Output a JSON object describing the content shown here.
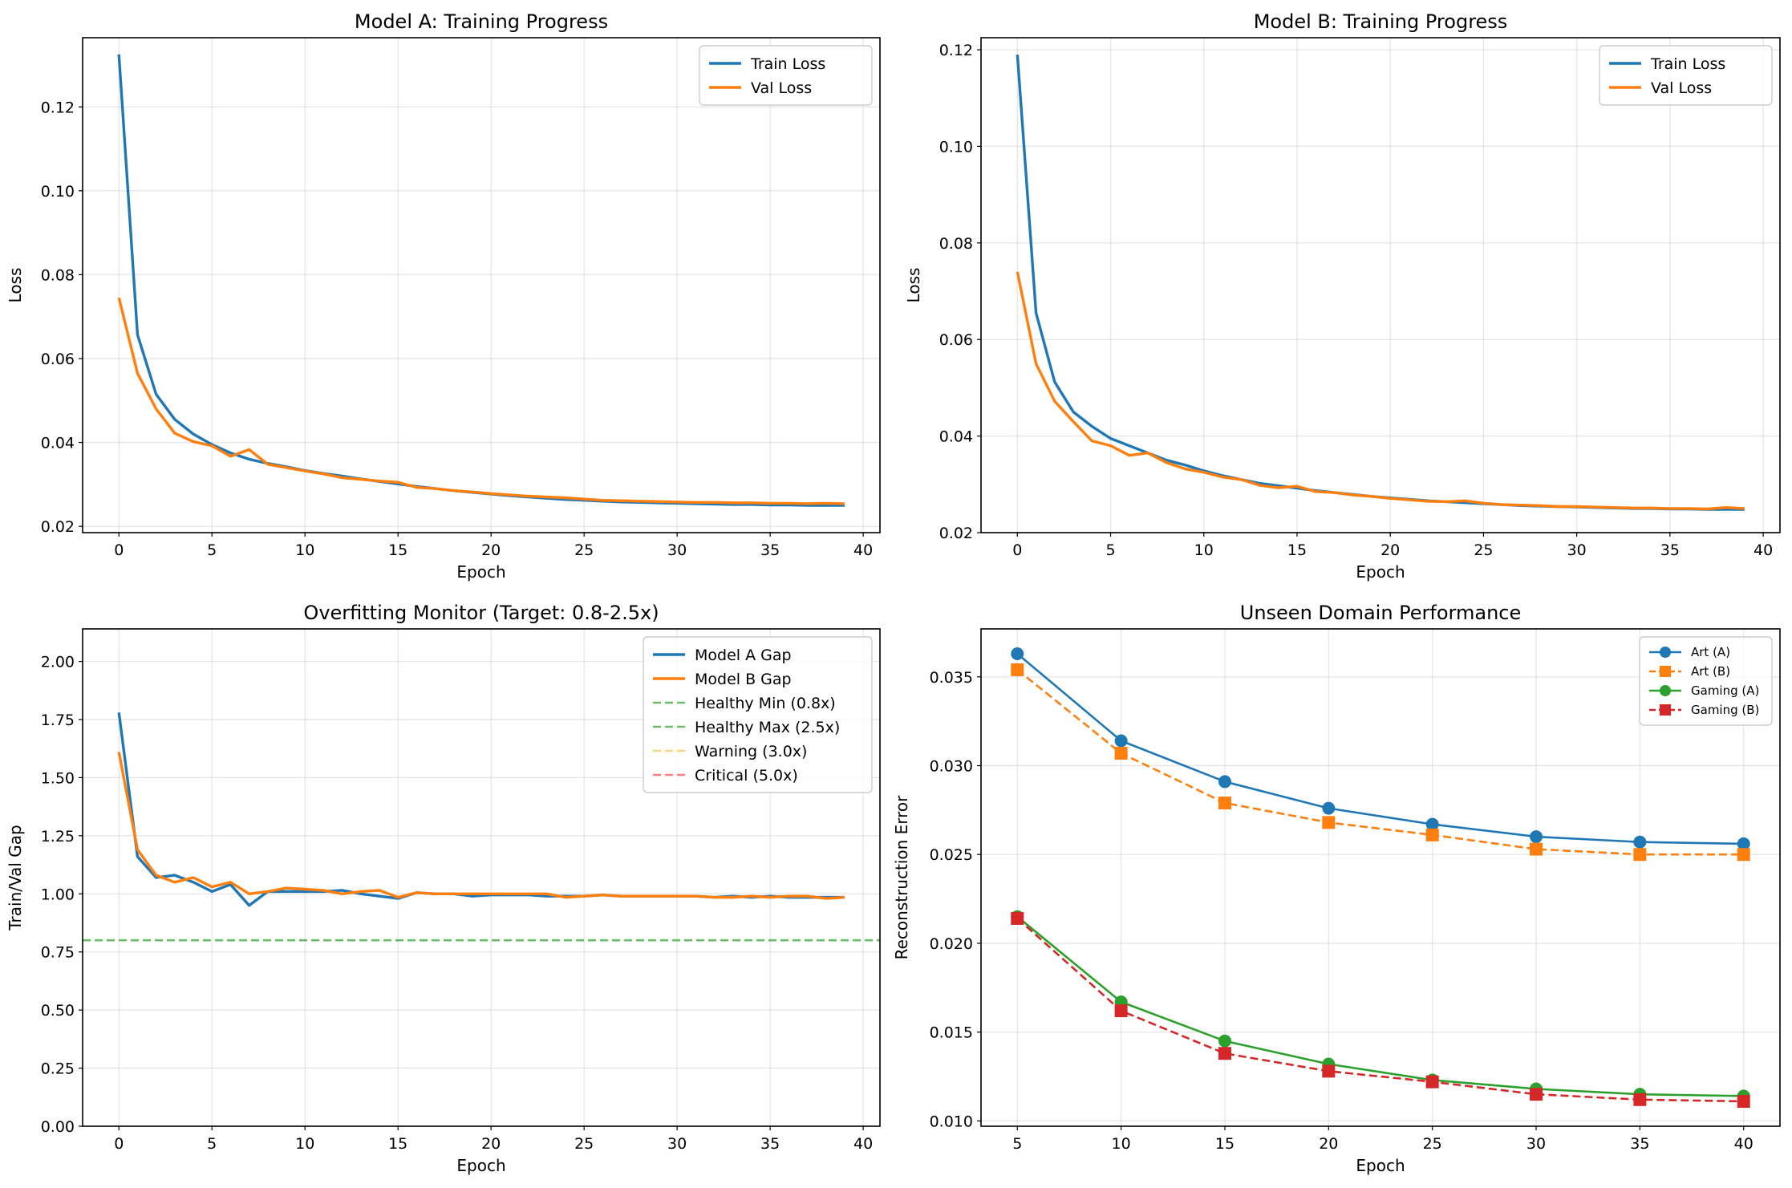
{
  "chart_data": [
    {
      "type": "line",
      "title": "Model A: Training Progress",
      "xlabel": "Epoch",
      "ylabel": "Loss",
      "xlim": [
        -1.95,
        40.9
      ],
      "ylim": [
        0.0185,
        0.1365
      ],
      "xticks": [
        0,
        5,
        10,
        15,
        20,
        25,
        30,
        35,
        40
      ],
      "yticks": [
        0.02,
        0.04,
        0.06,
        0.08,
        0.1,
        0.12
      ],
      "ytick_decimals": 2,
      "grid": true,
      "legend": "top-right",
      "x": [
        0,
        1,
        2,
        3,
        4,
        5,
        6,
        7,
        8,
        9,
        10,
        11,
        12,
        13,
        14,
        15,
        16,
        17,
        18,
        19,
        20,
        21,
        22,
        23,
        24,
        25,
        26,
        27,
        28,
        29,
        30,
        31,
        32,
        33,
        34,
        35,
        36,
        37,
        38,
        39
      ],
      "series": [
        {
          "name": "Train Loss",
          "color": "#1f77b4",
          "style": "solid",
          "values": [
            0.1325,
            0.0657,
            0.0515,
            0.0455,
            0.042,
            0.0395,
            0.0375,
            0.036,
            0.035,
            0.0342,
            0.0333,
            0.0326,
            0.032,
            0.0313,
            0.0307,
            0.0301,
            0.0295,
            0.029,
            0.0285,
            0.0281,
            0.0277,
            0.0273,
            0.027,
            0.0267,
            0.0264,
            0.0262,
            0.026,
            0.0258,
            0.0257,
            0.0256,
            0.0255,
            0.0254,
            0.0253,
            0.0252,
            0.0252,
            0.0251,
            0.0251,
            0.025,
            0.025,
            0.025
          ]
        },
        {
          "name": "Val Loss",
          "color": "#ff7f0e",
          "style": "solid",
          "values": [
            0.0745,
            0.0565,
            0.048,
            0.0422,
            0.0402,
            0.0392,
            0.0367,
            0.0383,
            0.0348,
            0.034,
            0.0332,
            0.0325,
            0.0316,
            0.0312,
            0.0308,
            0.0305,
            0.0293,
            0.029,
            0.0285,
            0.0282,
            0.0278,
            0.0275,
            0.0272,
            0.027,
            0.0268,
            0.0265,
            0.0262,
            0.0261,
            0.026,
            0.0259,
            0.0258,
            0.0257,
            0.0257,
            0.0256,
            0.0256,
            0.0255,
            0.0255,
            0.0254,
            0.0255,
            0.0254
          ]
        }
      ]
    },
    {
      "type": "line",
      "title": "Model B: Training Progress",
      "xlabel": "Epoch",
      "ylabel": "Loss",
      "xlim": [
        -1.95,
        40.9
      ],
      "ylim": [
        0.02,
        0.1225
      ],
      "xticks": [
        0,
        5,
        10,
        15,
        20,
        25,
        30,
        35,
        40
      ],
      "yticks": [
        0.02,
        0.04,
        0.06,
        0.08,
        0.1,
        0.12
      ],
      "ytick_decimals": 2,
      "grid": true,
      "legend": "top-right",
      "x": [
        0,
        1,
        2,
        3,
        4,
        5,
        6,
        7,
        8,
        9,
        10,
        11,
        12,
        13,
        14,
        15,
        16,
        17,
        18,
        19,
        20,
        21,
        22,
        23,
        24,
        25,
        26,
        27,
        28,
        29,
        30,
        31,
        32,
        33,
        34,
        35,
        36,
        37,
        38,
        39
      ],
      "series": [
        {
          "name": "Train Loss",
          "color": "#1f77b4",
          "style": "solid",
          "values": [
            0.119,
            0.0655,
            0.0512,
            0.045,
            0.042,
            0.0395,
            0.038,
            0.0365,
            0.035,
            0.034,
            0.0328,
            0.0318,
            0.031,
            0.0302,
            0.0297,
            0.0292,
            0.0287,
            0.0283,
            0.0279,
            0.0275,
            0.0272,
            0.0269,
            0.0266,
            0.0264,
            0.0262,
            0.026,
            0.0258,
            0.0256,
            0.0255,
            0.0254,
            0.0253,
            0.0252,
            0.0251,
            0.025,
            0.025,
            0.0249,
            0.0249,
            0.0248,
            0.0248,
            0.0248
          ]
        },
        {
          "name": "Val Loss",
          "color": "#ff7f0e",
          "style": "solid",
          "values": [
            0.074,
            0.055,
            0.0472,
            0.043,
            0.039,
            0.038,
            0.036,
            0.0365,
            0.0345,
            0.0332,
            0.0325,
            0.0315,
            0.031,
            0.0298,
            0.0293,
            0.0296,
            0.0285,
            0.0283,
            0.0278,
            0.0275,
            0.0271,
            0.0268,
            0.0265,
            0.0264,
            0.0266,
            0.0261,
            0.0258,
            0.0257,
            0.0256,
            0.0254,
            0.0254,
            0.0253,
            0.0252,
            0.0251,
            0.0251,
            0.025,
            0.025,
            0.0249,
            0.0252,
            0.025
          ]
        }
      ]
    },
    {
      "type": "line",
      "title": "Overfitting Monitor (Target: 0.8-2.5x)",
      "xlabel": "Epoch",
      "ylabel": "Train/Val Gap",
      "xlim": [
        -1.95,
        40.9
      ],
      "ylim": [
        0,
        2.14
      ],
      "xticks": [
        0,
        5,
        10,
        15,
        20,
        25,
        30,
        35,
        40
      ],
      "yticks": [
        0,
        0.25,
        0.5,
        0.75,
        1.0,
        1.25,
        1.5,
        1.75,
        2.0
      ],
      "ytick_decimals": 2,
      "grid": true,
      "legend": "top-right",
      "x": [
        0,
        1,
        2,
        3,
        4,
        5,
        6,
        7,
        8,
        9,
        10,
        11,
        12,
        13,
        14,
        15,
        16,
        17,
        18,
        19,
        20,
        21,
        22,
        23,
        24,
        25,
        26,
        27,
        28,
        29,
        30,
        31,
        32,
        33,
        34,
        35,
        36,
        37,
        38,
        39
      ],
      "series": [
        {
          "name": "Model A Gap",
          "color": "#1f77b4",
          "style": "solid",
          "values": [
            1.78,
            1.16,
            1.07,
            1.08,
            1.05,
            1.01,
            1.04,
            0.95,
            1.01,
            1.01,
            1.01,
            1.01,
            1.015,
            1.0,
            0.99,
            0.98,
            1.005,
            1.0,
            1.0,
            0.99,
            0.995,
            0.995,
            0.995,
            0.99,
            0.99,
            0.99,
            0.995,
            0.99,
            0.99,
            0.99,
            0.99,
            0.99,
            0.985,
            0.99,
            0.985,
            0.99,
            0.985,
            0.985,
            0.985,
            0.985
          ]
        },
        {
          "name": "Model B Gap",
          "color": "#ff7f0e",
          "style": "solid",
          "values": [
            1.61,
            1.19,
            1.08,
            1.05,
            1.07,
            1.03,
            1.05,
            1.0,
            1.01,
            1.025,
            1.02,
            1.015,
            1.0,
            1.01,
            1.015,
            0.985,
            1.005,
            1.0,
            1.0,
            1.0,
            1.0,
            1.0,
            1.0,
            1.0,
            0.985,
            0.99,
            0.995,
            0.99,
            0.99,
            0.99,
            0.99,
            0.99,
            0.985,
            0.985,
            0.99,
            0.985,
            0.99,
            0.99,
            0.98,
            0.985
          ]
        }
      ],
      "hlines": [
        {
          "name": "Healthy Min (0.8x)",
          "y": 0.8,
          "color": "#2ca02c",
          "opacity": 0.7
        },
        {
          "name": "Healthy Max (2.5x)",
          "y": 2.5,
          "color": "#2ca02c",
          "opacity": 0.7
        },
        {
          "name": "Warning (3.0x)",
          "y": 3.0,
          "color": "#ffa500",
          "opacity": 0.5
        },
        {
          "name": "Critical (5.0x)",
          "y": 5.0,
          "color": "#ff0000",
          "opacity": 0.5
        }
      ]
    },
    {
      "type": "line",
      "title": "Unseen Domain Performance",
      "xlabel": "Epoch",
      "ylabel": "Reconstruction Error",
      "xlim": [
        3.25,
        41.75
      ],
      "ylim": [
        0.0097,
        0.0377
      ],
      "xticks": [
        5,
        10,
        15,
        20,
        25,
        30,
        35,
        40
      ],
      "yticks": [
        0.01,
        0.015,
        0.02,
        0.025,
        0.03,
        0.035
      ],
      "ytick_decimals": 3,
      "grid": true,
      "legend": "top-right",
      "x": [
        5,
        10,
        15,
        20,
        25,
        30,
        35,
        40
      ],
      "series": [
        {
          "name": "Art (A)",
          "color": "#1f77b4",
          "style": "solid",
          "marker": "circle",
          "values": [
            0.0363,
            0.0314,
            0.0291,
            0.0276,
            0.0267,
            0.026,
            0.0257,
            0.0256
          ]
        },
        {
          "name": "Art (B)",
          "color": "#ff7f0e",
          "style": "dashed",
          "marker": "square",
          "values": [
            0.0354,
            0.0307,
            0.0279,
            0.0268,
            0.0261,
            0.0253,
            0.025,
            0.025
          ]
        },
        {
          "name": "Gaming (A)",
          "color": "#2ca02c",
          "style": "solid",
          "marker": "circle",
          "values": [
            0.0215,
            0.0167,
            0.0145,
            0.0132,
            0.0123,
            0.0118,
            0.0115,
            0.0114
          ]
        },
        {
          "name": "Gaming (B)",
          "color": "#d62728",
          "style": "dashed",
          "marker": "square",
          "values": [
            0.0214,
            0.0162,
            0.0138,
            0.0128,
            0.0122,
            0.0115,
            0.0112,
            0.0111
          ]
        }
      ]
    }
  ]
}
